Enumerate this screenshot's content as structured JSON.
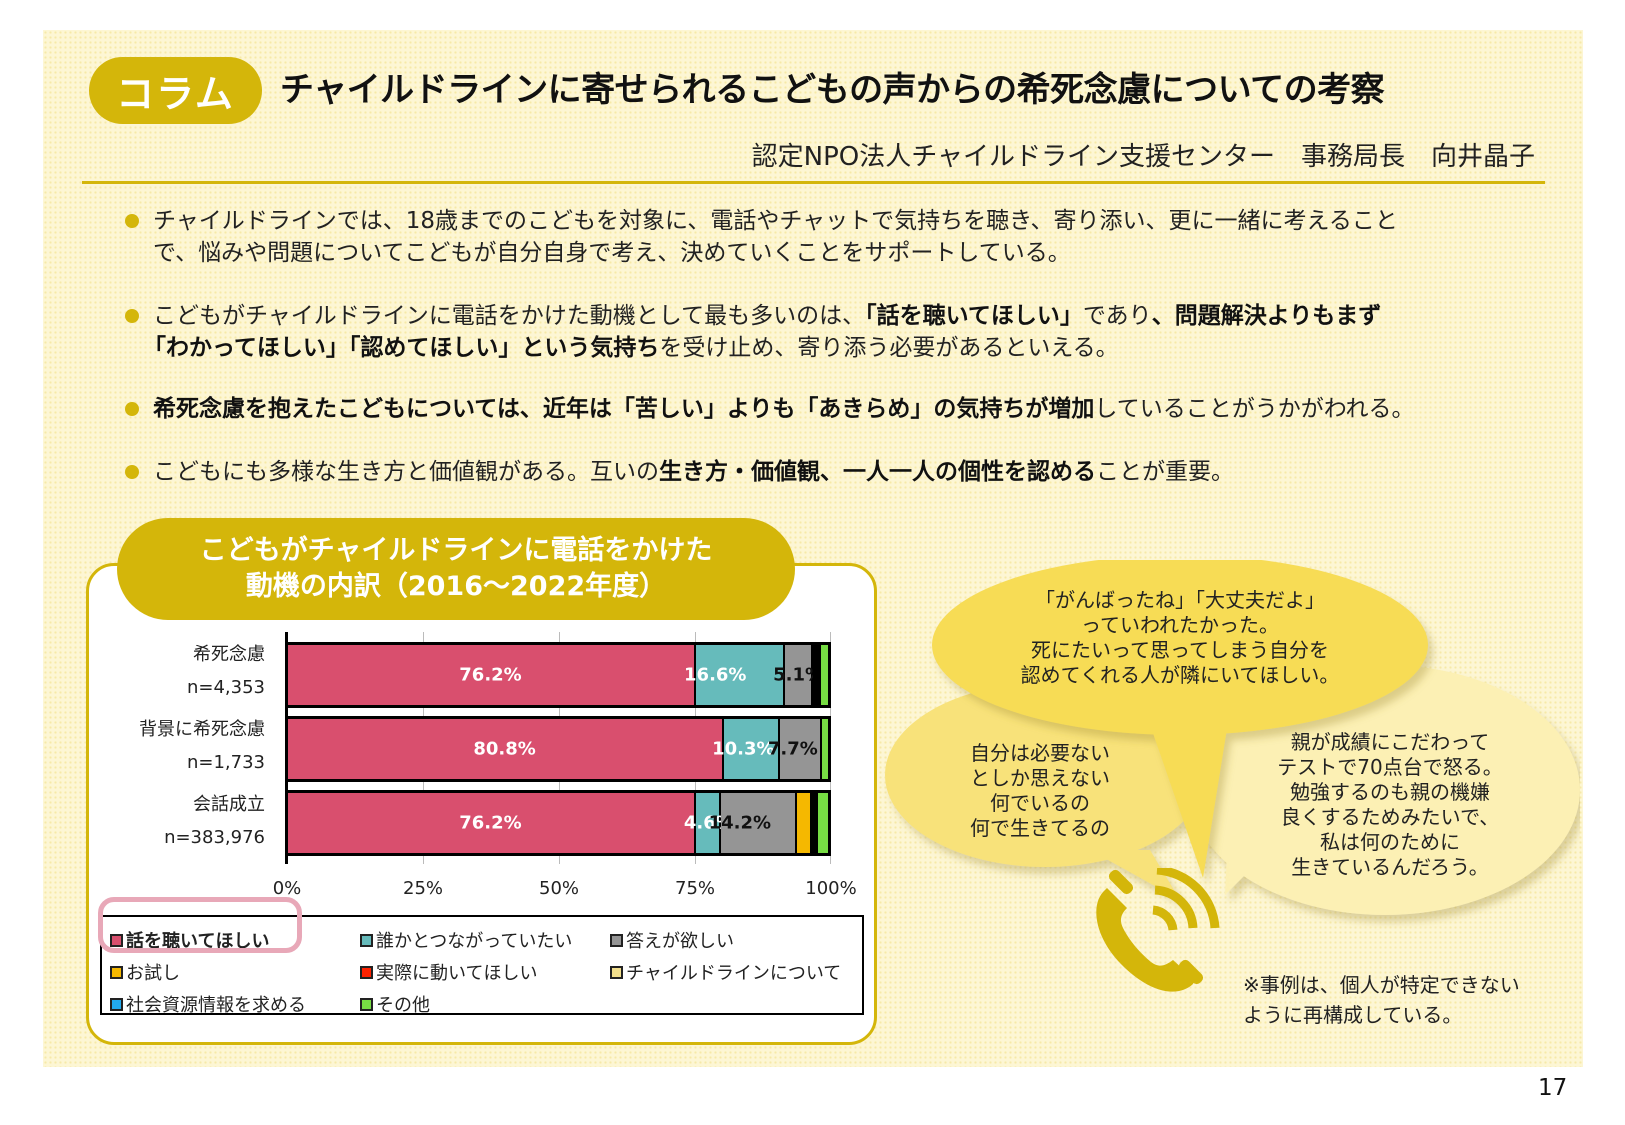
{
  "header": {
    "tag": "コラム",
    "title": "チャイルドラインに寄せられるこどもの声からの希死念慮についての考察",
    "author": "認定NPO法人チャイルドライン支援センター　事務局長　向井晶子"
  },
  "bullets": [
    {
      "line1": "チャイルドラインでは、18歳までのこどもを対象に、電話やチャットで気持ちを聴き、寄り添い、更に一緒に考えること",
      "line2": "で、悩みや問題についてこどもが自分自身で考え、決めていくことをサポートしている。"
    },
    {
      "p1": "こどもがチャイルドラインに電話をかけた動機として最も多いのは、",
      "b1": "「話を聴いてほしい」",
      "p2": "であり",
      "b2": "、問題解決よりもまず",
      "b3": "「わかってほしい」「認めてほしい」という気持ち",
      "p3": "を受け止め、寄り添う必要があるといえる。"
    },
    {
      "b1": "希死念慮を抱えたこどもについては、近年は「苦しい」よりも「あきらめ」の気持ちが増加",
      "p1": "していることがうかがわれる。"
    },
    {
      "p1": "こどもにも多様な生き方と価値観がある。互いの",
      "b1": "生き方・価値観、一人一人の個性を認める",
      "p2": "ことが重要。"
    }
  ],
  "chart_title": {
    "line1": "こどもがチャイルドラインに電話をかけた",
    "line2": "動機の内訳（2016～2022年度）"
  },
  "chart_data": {
    "type": "bar",
    "orientation": "horizontal",
    "stacked": true,
    "percent": true,
    "title": "こどもがチャイルドラインに電話をかけた動機の内訳（2016～2022年度）",
    "xlabel": "",
    "ylabel": "",
    "xlim": [
      0,
      100
    ],
    "xticks": [
      "0%",
      "25%",
      "50%",
      "75%",
      "100%"
    ],
    "grid": true,
    "legend_position": "bottom",
    "categories": [
      {
        "name": "希死念慮",
        "n": "n=4,353"
      },
      {
        "name": "背景に希死念慮",
        "n": "n=1,733"
      },
      {
        "name": "会話成立",
        "n": "n=383,976"
      }
    ],
    "series": [
      {
        "name": "話を聴いてほしい",
        "color": "#d94f6e",
        "values": [
          76.2,
          80.8,
          76.2
        ],
        "labels": [
          "76.2%",
          "80.8%",
          "76.2%"
        ]
      },
      {
        "name": "誰かとつながっていたい",
        "color": "#66bbbb",
        "values": [
          16.6,
          10.3,
          4.6
        ],
        "labels": [
          "16.6%",
          "10.3%",
          "4.6%"
        ]
      },
      {
        "name": "答えが欲しい",
        "color": "#959595",
        "values": [
          5.1,
          7.7,
          14.2
        ],
        "labels": [
          "5.1%",
          "7.7%",
          "14.2%"
        ]
      },
      {
        "name": "お試し",
        "color": "#f5b800",
        "values": [
          0.3,
          0.0,
          2.8
        ],
        "labels": [
          "",
          "",
          ""
        ]
      },
      {
        "name": "実際に動いてほしい",
        "color": "#ff2200",
        "values": [
          0.1,
          0.0,
          0.1
        ],
        "labels": [
          "",
          "",
          ""
        ]
      },
      {
        "name": "チャイルドラインについて",
        "color": "#f2df8c",
        "values": [
          0.2,
          0.0,
          0.1
        ],
        "labels": [
          "",
          "",
          ""
        ]
      },
      {
        "name": "社会資源情報を求める",
        "color": "#22aaee",
        "values": [
          0.1,
          0.0,
          0.1
        ],
        "labels": [
          "",
          "",
          ""
        ]
      },
      {
        "name": "その他",
        "color": "#77dd44",
        "values": [
          1.4,
          1.2,
          1.9
        ],
        "labels": [
          "",
          "",
          ""
        ]
      }
    ],
    "annotations": [
      "凡例「話を聴いてほしい」がピンクの枠で強調"
    ]
  },
  "legend": [
    {
      "label": "話を聴いてほしい",
      "color": "#d94f6e",
      "bold": true
    },
    {
      "label": "誰かとつながっていたい",
      "color": "#66bbbb"
    },
    {
      "label": "答えが欲しい",
      "color": "#959595"
    },
    {
      "label": "お試し",
      "color": "#f5b800"
    },
    {
      "label": "実際に動いてほしい",
      "color": "#ff2200"
    },
    {
      "label": "チャイルドラインについて",
      "color": "#f2df8c"
    },
    {
      "label": "社会資源情報を求める",
      "color": "#22aaee"
    },
    {
      "label": "その他",
      "color": "#77dd44"
    }
  ],
  "bubbles": {
    "top": [
      "「がんばったね」「大丈夫だよ」",
      "っていわれたかった。",
      "死にたいって思ってしまう自分を",
      "認めてくれる人が隣にいてほしい。"
    ],
    "left": [
      "自分は必要ない",
      "としか思えない",
      "何でいるの",
      "何で生きてるの"
    ],
    "right": [
      "親が成績にこだわって",
      "テストで70点台で怒る。",
      "勉強するのも親の機嫌",
      "良くするためみたいで、",
      "私は何のために",
      "生きているんだろう。"
    ]
  },
  "icons": {
    "phone": "phone-ringing-icon"
  },
  "note": [
    "※事例は、個人が特定できない",
    "ように再構成している。"
  ],
  "page_number": "17",
  "colors": {
    "accent": "#d4b60a",
    "highlight": "#e8a8b8",
    "bubble_top": "#f7dc55",
    "bubble_left": "#f8e27a",
    "bubble_right": "#fcf0b4"
  }
}
